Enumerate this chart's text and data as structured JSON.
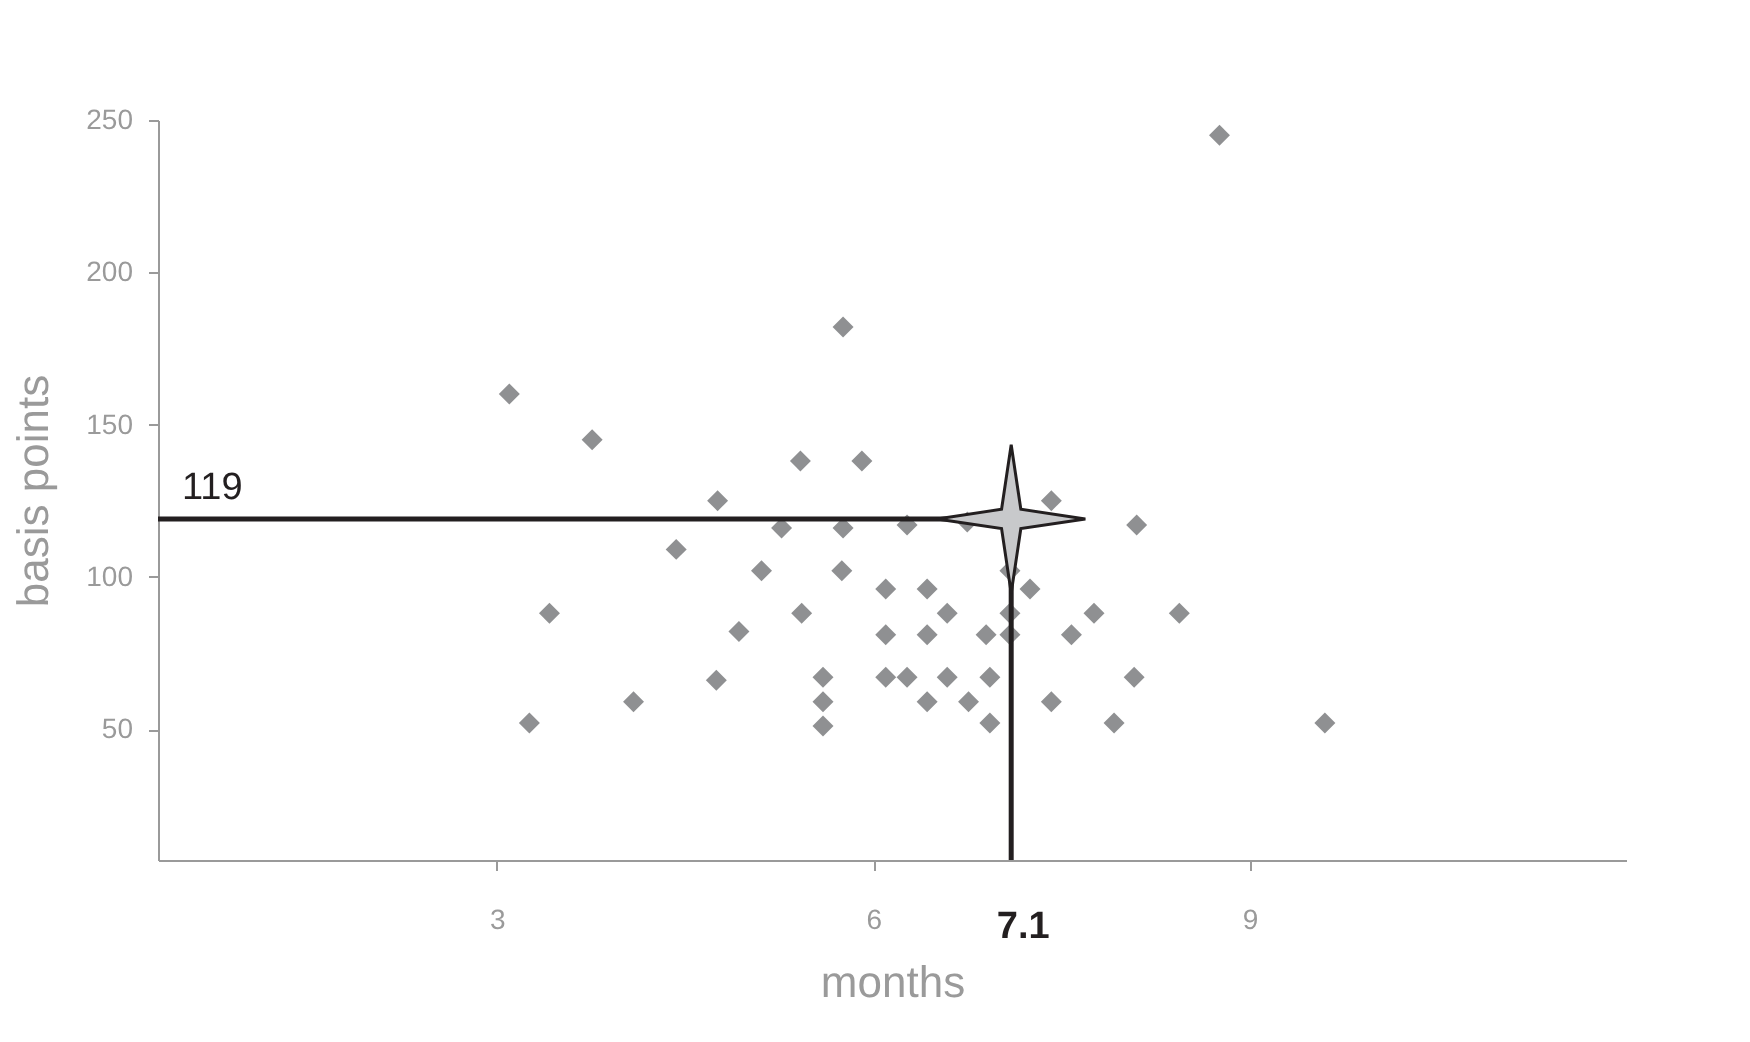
{
  "chart_data": {
    "type": "scatter",
    "xlabel": "months",
    "ylabel": "basis points",
    "xlim": [
      0.3,
      12
    ],
    "xticks": [
      3,
      6,
      9
    ],
    "ylim": [
      7,
      250
    ],
    "yticks": [
      50,
      100,
      150,
      200,
      250
    ],
    "marker": "diamond",
    "series": [
      {
        "color": "#8f9092",
        "x": [
          3.1,
          3.26,
          3.42,
          3.76,
          4.09,
          4.43,
          4.75,
          4.76,
          4.93,
          5.11,
          5.27,
          5.42,
          5.43,
          5.6,
          5.6,
          5.6,
          5.76,
          5.76,
          5.75,
          5.91,
          8.76,
          6.27,
          6.75,
          7.42,
          8.1,
          6.1,
          6.43,
          7.25,
          7.09,
          6.59,
          7.09,
          7.76,
          8.44,
          6.1,
          6.43,
          6.9,
          7.09,
          7.58,
          6.1,
          6.27,
          6.59,
          6.93,
          8.08,
          6.43,
          6.76,
          7.42,
          6.93,
          7.92,
          9.6
        ],
        "values": [
          160,
          52,
          88,
          145,
          59,
          109,
          66,
          125,
          82,
          102,
          116,
          138,
          88,
          67,
          59,
          51,
          182,
          116,
          102,
          138,
          245,
          117,
          118,
          125,
          117,
          96,
          96,
          96,
          102,
          88,
          88,
          88,
          88,
          81,
          81,
          81,
          81,
          81,
          67,
          67,
          67,
          67,
          67,
          59,
          59,
          59,
          52,
          52,
          52
        ]
      },
      {
        "color": "#c8c9cb",
        "marker": "star",
        "x": [
          7.1
        ],
        "values": [
          119
        ]
      }
    ],
    "ref_lines": [
      {
        "axis": "y",
        "value": 119,
        "label": "119",
        "color": "#231f20"
      },
      {
        "axis": "x",
        "value": 7.1,
        "label": "7.1",
        "color": "#231f20"
      }
    ]
  }
}
